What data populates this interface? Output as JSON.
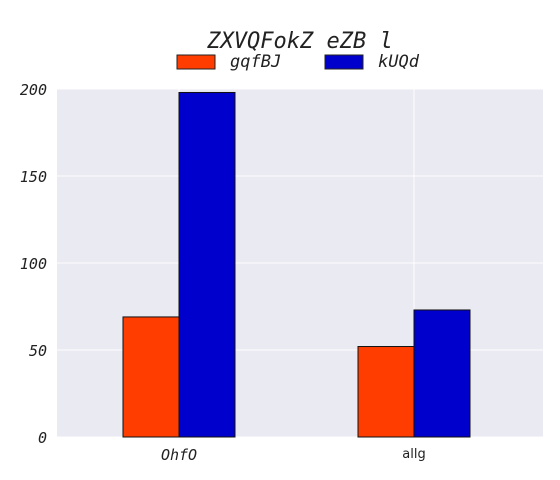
{
  "chart_data": {
    "type": "bar",
    "title": "ZXVQFokZ eZB l",
    "categories": [
      "OhfO",
      "allg"
    ],
    "series": [
      {
        "name": "gqfBJ",
        "values": [
          69,
          52
        ],
        "color": "#ff3d00"
      },
      {
        "name": "kUQd",
        "values": [
          198,
          73
        ],
        "color": "#0000cd"
      }
    ],
    "ylim": [
      0,
      200
    ],
    "yticks": [
      0,
      50,
      100,
      150,
      200
    ],
    "xlabel": "",
    "ylabel": "",
    "grid": true,
    "legend": "top-center",
    "plot_background": "#eaeaf2"
  }
}
